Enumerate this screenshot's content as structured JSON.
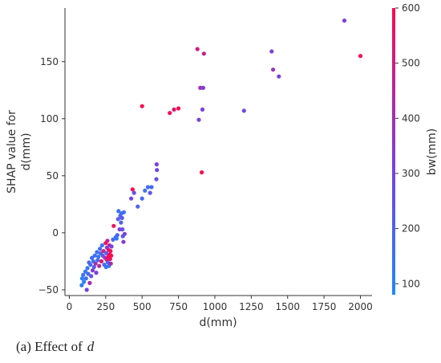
{
  "caption": {
    "label": "(a)  Effect of",
    "variable": "d"
  },
  "chart_data": {
    "type": "scatter",
    "title": "",
    "xlabel": "d(mm)",
    "ylabel_line1": "SHAP value for",
    "ylabel_line2": "d(mm)",
    "xlim": [
      -30,
      2080
    ],
    "ylim": [
      -55,
      197
    ],
    "xticks": [
      0,
      250,
      500,
      750,
      1000,
      1250,
      1500,
      1750,
      2000
    ],
    "yticks": [
      -50,
      0,
      50,
      100,
      150
    ],
    "grid": false,
    "colorbar": {
      "label": "bw(mm)",
      "range": [
        80,
        600
      ],
      "ticks": [
        100,
        200,
        300,
        400,
        500,
        600
      ],
      "colors": [
        "#1e88ff",
        "#7b3fe0",
        "#ff0a4f"
      ]
    },
    "points": [
      {
        "x": 85,
        "y": -46,
        "c": 120
      },
      {
        "x": 88,
        "y": -40,
        "c": 110
      },
      {
        "x": 95,
        "y": -37,
        "c": 150
      },
      {
        "x": 100,
        "y": -43,
        "c": 100
      },
      {
        "x": 110,
        "y": -34,
        "c": 130
      },
      {
        "x": 115,
        "y": -40,
        "c": 160
      },
      {
        "x": 120,
        "y": -50,
        "c": 300
      },
      {
        "x": 125,
        "y": -31,
        "c": 140
      },
      {
        "x": 130,
        "y": -36,
        "c": 180
      },
      {
        "x": 135,
        "y": -26,
        "c": 200
      },
      {
        "x": 140,
        "y": -44,
        "c": 420
      },
      {
        "x": 145,
        "y": -28,
        "c": 160
      },
      {
        "x": 150,
        "y": -38,
        "c": 250
      },
      {
        "x": 155,
        "y": -22,
        "c": 180
      },
      {
        "x": 160,
        "y": -33,
        "c": 350
      },
      {
        "x": 165,
        "y": -25,
        "c": 140
      },
      {
        "x": 170,
        "y": -30,
        "c": 220
      },
      {
        "x": 175,
        "y": -20,
        "c": 160
      },
      {
        "x": 180,
        "y": -27,
        "c": 400
      },
      {
        "x": 185,
        "y": -35,
        "c": 300
      },
      {
        "x": 190,
        "y": -17,
        "c": 150
      },
      {
        "x": 195,
        "y": -24,
        "c": 180
      },
      {
        "x": 200,
        "y": -21,
        "c": 130
      },
      {
        "x": 205,
        "y": -29,
        "c": 450
      },
      {
        "x": 210,
        "y": -14,
        "c": 170
      },
      {
        "x": 215,
        "y": -18,
        "c": 200
      },
      {
        "x": 220,
        "y": -25,
        "c": 550
      },
      {
        "x": 225,
        "y": -11,
        "c": 150
      },
      {
        "x": 230,
        "y": -20,
        "c": 250
      },
      {
        "x": 235,
        "y": -16,
        "c": 500
      },
      {
        "x": 240,
        "y": -28,
        "c": 160
      },
      {
        "x": 245,
        "y": -22,
        "c": 380
      },
      {
        "x": 250,
        "y": -9,
        "c": 580
      },
      {
        "x": 252,
        "y": -30,
        "c": 140
      },
      {
        "x": 255,
        "y": -18,
        "c": 200
      },
      {
        "x": 258,
        "y": -13,
        "c": 320
      },
      {
        "x": 260,
        "y": -24,
        "c": 560
      },
      {
        "x": 262,
        "y": -7,
        "c": 480
      },
      {
        "x": 265,
        "y": -26,
        "c": 180
      },
      {
        "x": 268,
        "y": -21,
        "c": 600
      },
      {
        "x": 270,
        "y": -15,
        "c": 520
      },
      {
        "x": 272,
        "y": -29,
        "c": 160
      },
      {
        "x": 275,
        "y": -11,
        "c": 450
      },
      {
        "x": 278,
        "y": -19,
        "c": 600
      },
      {
        "x": 280,
        "y": -23,
        "c": 550
      },
      {
        "x": 283,
        "y": -16,
        "c": 580
      },
      {
        "x": 285,
        "y": -27,
        "c": 420
      },
      {
        "x": 288,
        "y": -20,
        "c": 600
      },
      {
        "x": 290,
        "y": -12,
        "c": 300
      },
      {
        "x": 300,
        "y": -6,
        "c": 180
      },
      {
        "x": 305,
        "y": 6,
        "c": 560
      },
      {
        "x": 318,
        "y": -4,
        "c": 150
      },
      {
        "x": 325,
        "y": -5,
        "c": 130
      },
      {
        "x": 330,
        "y": -2,
        "c": 200
      },
      {
        "x": 335,
        "y": 12,
        "c": 230
      },
      {
        "x": 338,
        "y": 19,
        "c": 150
      },
      {
        "x": 345,
        "y": 3,
        "c": 330
      },
      {
        "x": 350,
        "y": 15,
        "c": 170
      },
      {
        "x": 355,
        "y": 9,
        "c": 200
      },
      {
        "x": 358,
        "y": 17,
        "c": 180
      },
      {
        "x": 362,
        "y": 13,
        "c": 230
      },
      {
        "x": 365,
        "y": 3,
        "c": 260
      },
      {
        "x": 368,
        "y": -3,
        "c": 220
      },
      {
        "x": 372,
        "y": -8,
        "c": 340
      },
      {
        "x": 375,
        "y": 18,
        "c": 160
      },
      {
        "x": 380,
        "y": -1,
        "c": 300
      },
      {
        "x": 425,
        "y": 30,
        "c": 300
      },
      {
        "x": 435,
        "y": 38,
        "c": 590
      },
      {
        "x": 445,
        "y": 35,
        "c": 260
      },
      {
        "x": 470,
        "y": 23,
        "c": 200
      },
      {
        "x": 500,
        "y": 30,
        "c": 180
      },
      {
        "x": 520,
        "y": 37,
        "c": 160
      },
      {
        "x": 540,
        "y": 40,
        "c": 170
      },
      {
        "x": 555,
        "y": 35,
        "c": 230
      },
      {
        "x": 565,
        "y": 40,
        "c": 180
      },
      {
        "x": 598,
        "y": 47,
        "c": 260
      },
      {
        "x": 600,
        "y": 60,
        "c": 320
      },
      {
        "x": 602,
        "y": 55,
        "c": 290
      },
      {
        "x": 500,
        "y": 111,
        "c": 600
      },
      {
        "x": 690,
        "y": 105,
        "c": 580
      },
      {
        "x": 720,
        "y": 108,
        "c": 540
      },
      {
        "x": 750,
        "y": 109,
        "c": 600
      },
      {
        "x": 880,
        "y": 161,
        "c": 500
      },
      {
        "x": 890,
        "y": 99,
        "c": 300
      },
      {
        "x": 900,
        "y": 127,
        "c": 400
      },
      {
        "x": 910,
        "y": 53,
        "c": 600
      },
      {
        "x": 915,
        "y": 108,
        "c": 320
      },
      {
        "x": 920,
        "y": 127,
        "c": 330
      },
      {
        "x": 925,
        "y": 157,
        "c": 480
      },
      {
        "x": 1200,
        "y": 107,
        "c": 280
      },
      {
        "x": 1390,
        "y": 159,
        "c": 320
      },
      {
        "x": 1400,
        "y": 143,
        "c": 370
      },
      {
        "x": 1440,
        "y": 137,
        "c": 300
      },
      {
        "x": 1890,
        "y": 186,
        "c": 320
      },
      {
        "x": 2000,
        "y": 155,
        "c": 600
      }
    ]
  }
}
